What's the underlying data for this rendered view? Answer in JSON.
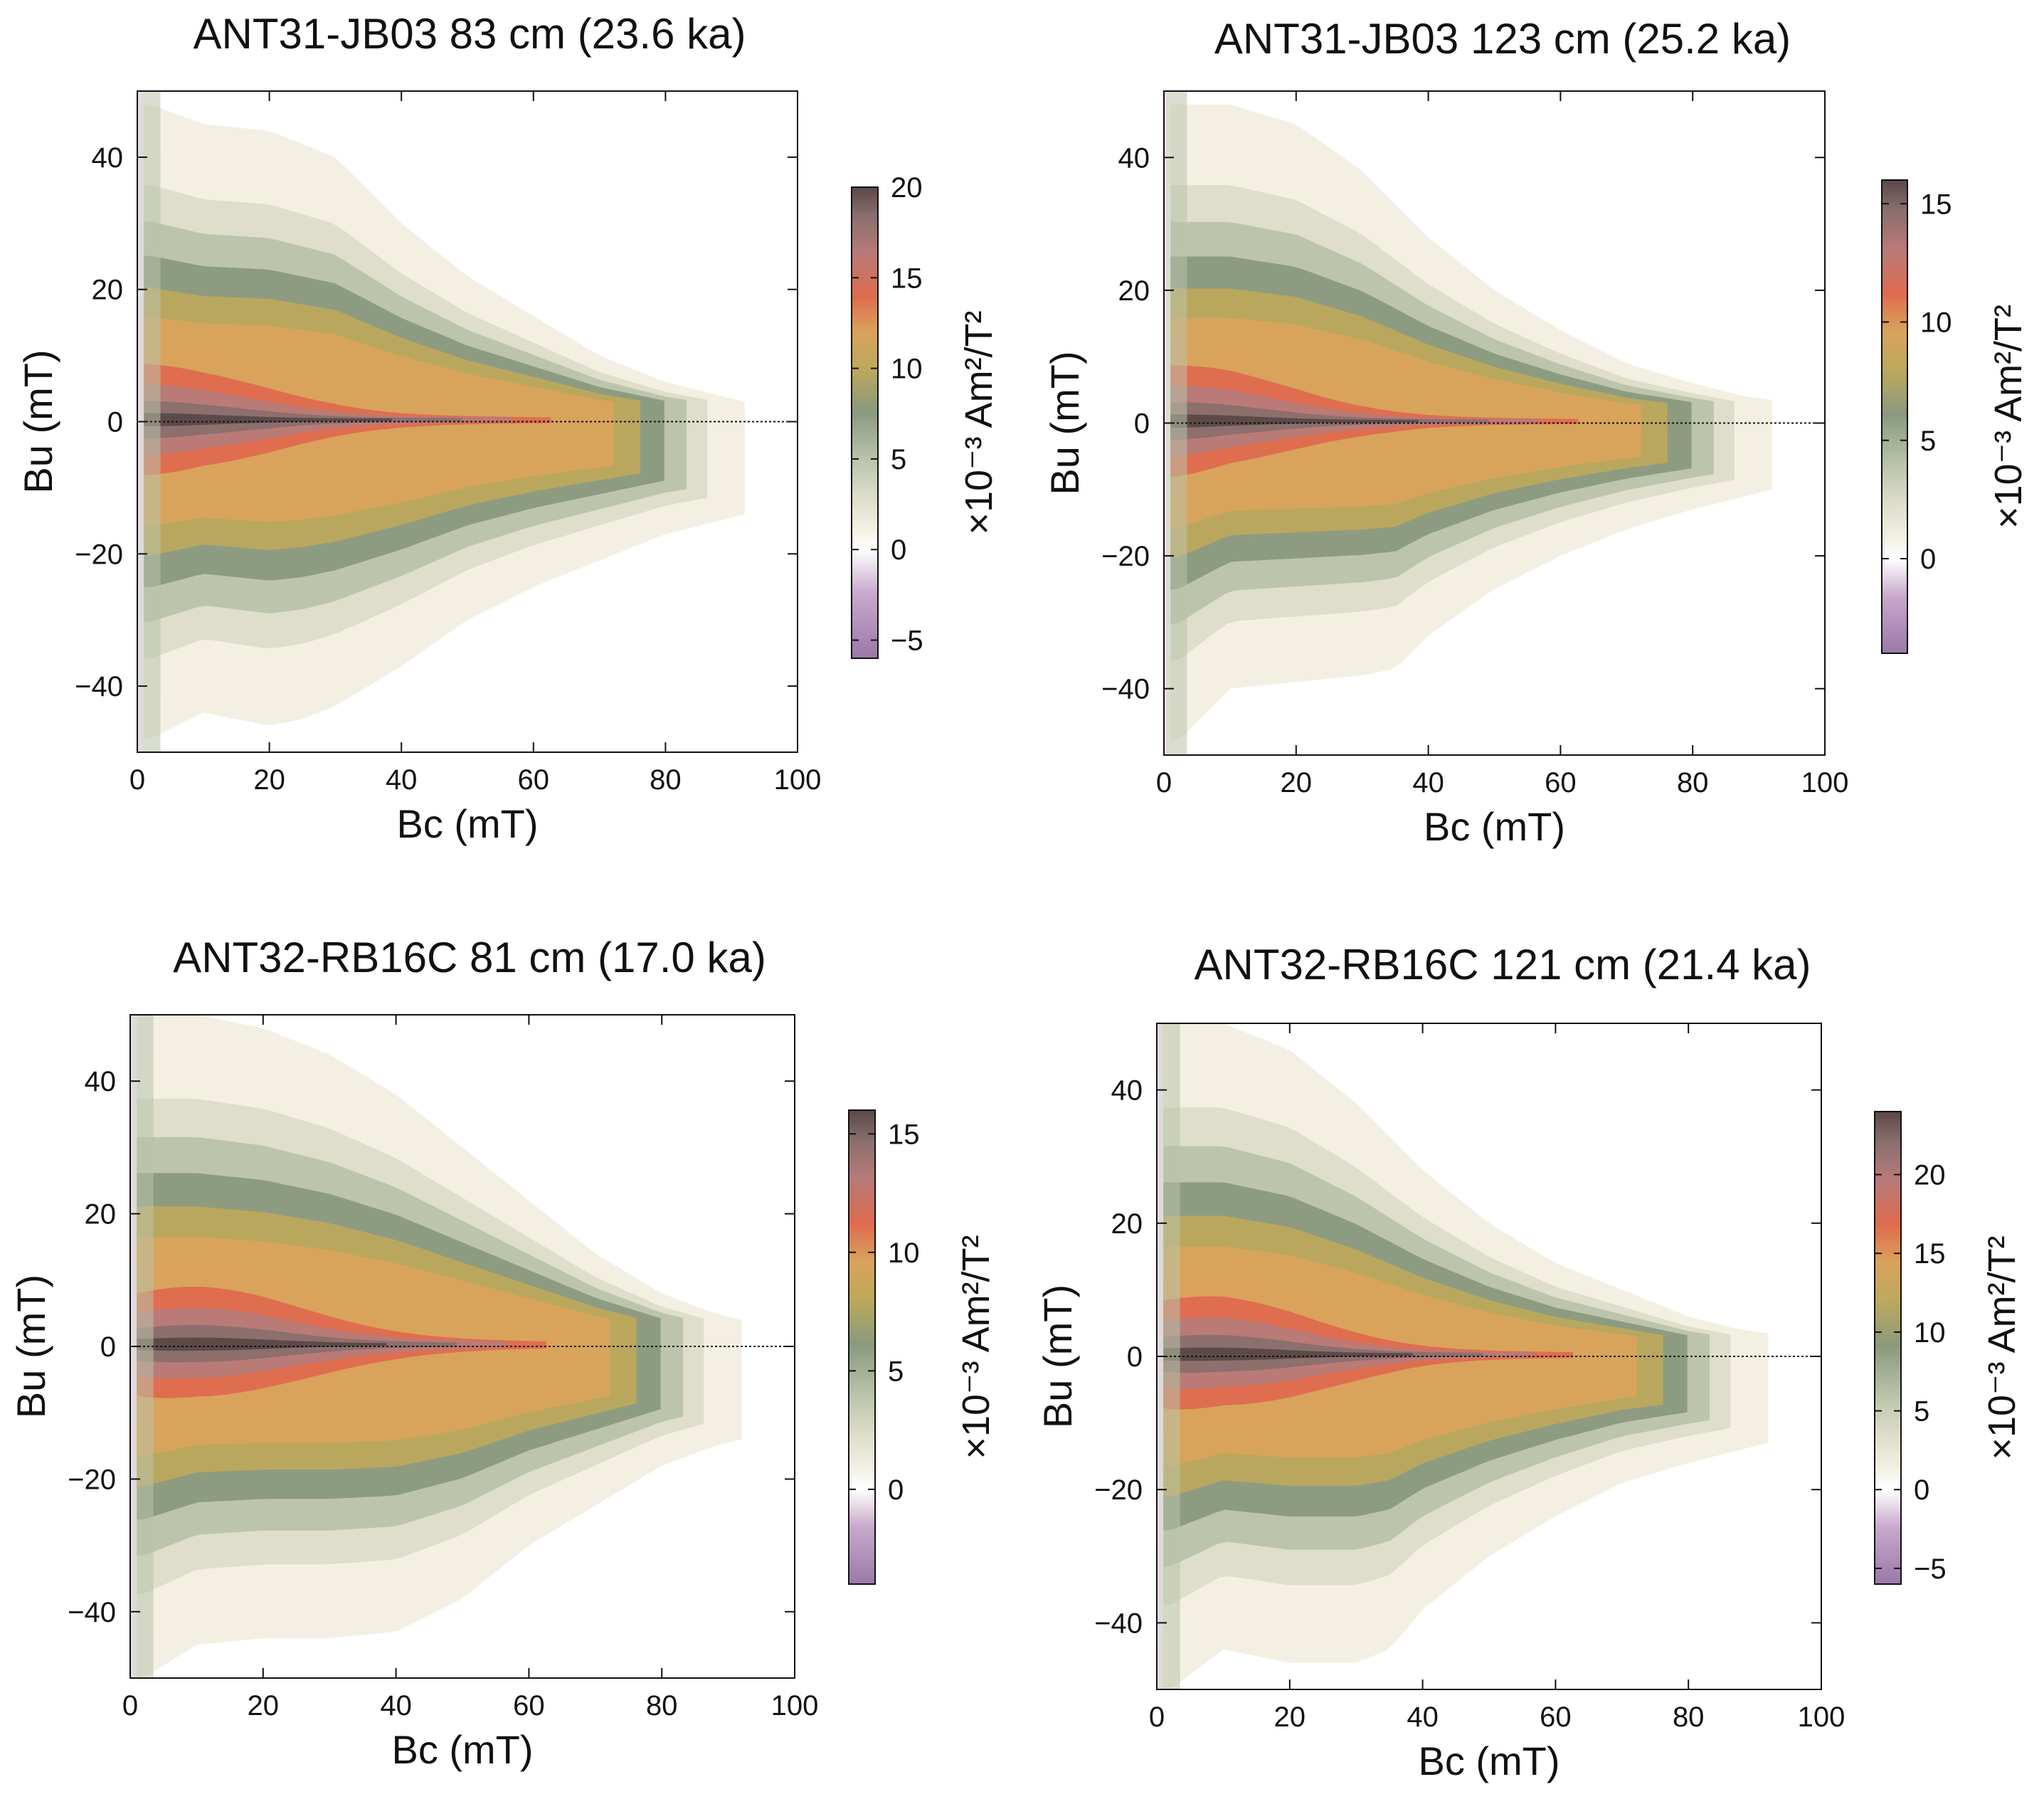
{
  "figure": {
    "colorbar_unit": "×10⁻³ Am²/T²",
    "colormap": [
      "#9a78a8",
      "#c8a9cc",
      "#ffffff",
      "#f2efe2",
      "#dcdcc8",
      "#b9c3aa",
      "#8a9a7e",
      "#bda85c",
      "#d9a35c",
      "#df6b4f",
      "#b77a78",
      "#8a6f6d",
      "#5a4848"
    ],
    "dashed_zero_line": true
  },
  "chart_data": [
    {
      "type": "heatmap",
      "title": "ANT31-JB03 83 cm (23.6 ka)",
      "xlabel": "Bc (mT)",
      "ylabel": "Bu (mT)",
      "xlim": [
        0,
        100
      ],
      "ylim": [
        -50,
        50
      ],
      "xticks": [
        "0",
        "20",
        "40",
        "60",
        "80",
        "100"
      ],
      "yticks": [
        "40",
        "20",
        "0",
        "−20",
        "−40"
      ],
      "ytick_values": [
        40,
        20,
        0,
        -20,
        -40
      ],
      "colorbar": {
        "min": -6,
        "max": 20,
        "ticks": [
          "20",
          "15",
          "10",
          "5",
          "0",
          "−5"
        ],
        "tick_values": [
          20,
          15,
          10,
          5,
          0,
          -5
        ]
      },
      "peak": {
        "bc": 2,
        "bu": 0.5,
        "value": 19
      },
      "data_extent_bc": 92,
      "upper_spread": [
        [
          2,
          48
        ],
        [
          10,
          45
        ],
        [
          20,
          44
        ],
        [
          30,
          40
        ],
        [
          40,
          30
        ],
        [
          50,
          22
        ],
        [
          60,
          16
        ],
        [
          70,
          10
        ],
        [
          80,
          6
        ],
        [
          88,
          4
        ],
        [
          92,
          3
        ]
      ],
      "lower_spread": [
        [
          2,
          -48
        ],
        [
          10,
          -44
        ],
        [
          20,
          -46
        ],
        [
          25,
          -45
        ],
        [
          30,
          -43
        ],
        [
          40,
          -37
        ],
        [
          50,
          -30
        ],
        [
          60,
          -25
        ],
        [
          70,
          -21
        ],
        [
          80,
          -17
        ],
        [
          88,
          -15
        ],
        [
          92,
          -14
        ]
      ]
    },
    {
      "type": "heatmap",
      "title": "ANT31-JB03 123 cm (25.2 ka)",
      "xlabel": "Bc (mT)",
      "ylabel": "Bu (mT)",
      "xlim": [
        0,
        100
      ],
      "ylim": [
        -50,
        50
      ],
      "xticks": [
        "0",
        "20",
        "40",
        "60",
        "80",
        "100"
      ],
      "yticks": [
        "40",
        "20",
        "0",
        "−20",
        "−40"
      ],
      "ytick_values": [
        40,
        20,
        0,
        -20,
        -40
      ],
      "colorbar": {
        "min": -4,
        "max": 16,
        "ticks": [
          "15",
          "10",
          "5",
          "0"
        ],
        "tick_values": [
          15,
          10,
          5,
          0
        ]
      },
      "peak": {
        "bc": 2,
        "bu": 0.5,
        "value": 15
      },
      "data_extent_bc": 92,
      "upper_spread": [
        [
          2,
          48
        ],
        [
          10,
          48
        ],
        [
          20,
          45
        ],
        [
          30,
          38
        ],
        [
          40,
          28
        ],
        [
          50,
          20
        ],
        [
          60,
          14
        ],
        [
          70,
          9
        ],
        [
          80,
          6
        ],
        [
          88,
          4
        ],
        [
          92,
          3.5
        ]
      ],
      "lower_spread": [
        [
          2,
          -48
        ],
        [
          10,
          -40
        ],
        [
          20,
          -39
        ],
        [
          30,
          -38
        ],
        [
          35,
          -37
        ],
        [
          40,
          -32
        ],
        [
          50,
          -25
        ],
        [
          60,
          -20
        ],
        [
          70,
          -16
        ],
        [
          80,
          -13
        ],
        [
          88,
          -11
        ],
        [
          92,
          -10
        ]
      ]
    },
    {
      "type": "heatmap",
      "title": "ANT32-RB16C 81 cm (17.0 ka)",
      "xlabel": "Bc (mT)",
      "ylabel": "Bu (mT)",
      "xlim": [
        0,
        100
      ],
      "ylim": [
        -50,
        50
      ],
      "xticks": [
        "0",
        "20",
        "40",
        "60",
        "80",
        "100"
      ],
      "yticks": [
        "40",
        "20",
        "0",
        "−20",
        "−40"
      ],
      "ytick_values": [
        40,
        20,
        0,
        -20,
        -40
      ],
      "colorbar": {
        "min": -4,
        "max": 16,
        "ticks": [
          "15",
          "10",
          "5",
          "0"
        ],
        "tick_values": [
          15,
          10,
          5,
          0
        ]
      },
      "peak": {
        "bc": 10,
        "bu": 0,
        "value": 16
      },
      "data_extent_bc": 92,
      "upper_spread": [
        [
          2,
          50
        ],
        [
          10,
          50
        ],
        [
          20,
          48
        ],
        [
          30,
          44
        ],
        [
          40,
          38
        ],
        [
          50,
          30
        ],
        [
          60,
          22
        ],
        [
          70,
          14
        ],
        [
          80,
          8
        ],
        [
          88,
          5
        ],
        [
          92,
          4
        ]
      ],
      "lower_spread": [
        [
          2,
          -50
        ],
        [
          10,
          -45
        ],
        [
          20,
          -44
        ],
        [
          30,
          -44
        ],
        [
          40,
          -43
        ],
        [
          50,
          -38
        ],
        [
          60,
          -30
        ],
        [
          70,
          -24
        ],
        [
          80,
          -18
        ],
        [
          88,
          -15
        ],
        [
          92,
          -14
        ]
      ]
    },
    {
      "type": "heatmap",
      "title": "ANT32-RB16C 121 cm (21.4 ka)",
      "xlabel": "Bc (mT)",
      "ylabel": "Bu (mT)",
      "xlim": [
        0,
        100
      ],
      "ylim": [
        -50,
        50
      ],
      "xticks": [
        "0",
        "20",
        "40",
        "60",
        "80",
        "100"
      ],
      "yticks": [
        "40",
        "20",
        "0",
        "−20",
        "−40"
      ],
      "ytick_values": [
        40,
        20,
        0,
        -20,
        -40
      ],
      "colorbar": {
        "min": -6,
        "max": 24,
        "ticks": [
          "20",
          "15",
          "10",
          "5",
          "0",
          "−5"
        ],
        "tick_values": [
          20,
          15,
          10,
          5,
          0,
          -5
        ]
      },
      "peak": {
        "bc": 8,
        "bu": 0,
        "value": 23
      },
      "data_extent_bc": 92,
      "upper_spread": [
        [
          2,
          50
        ],
        [
          10,
          50
        ],
        [
          20,
          46
        ],
        [
          30,
          38
        ],
        [
          40,
          28
        ],
        [
          50,
          20
        ],
        [
          60,
          14
        ],
        [
          70,
          10
        ],
        [
          80,
          6
        ],
        [
          88,
          4
        ],
        [
          92,
          3.5
        ]
      ],
      "lower_spread": [
        [
          2,
          -50
        ],
        [
          10,
          -44
        ],
        [
          20,
          -46
        ],
        [
          30,
          -46
        ],
        [
          35,
          -44
        ],
        [
          40,
          -38
        ],
        [
          50,
          -30
        ],
        [
          60,
          -24
        ],
        [
          70,
          -19
        ],
        [
          80,
          -16
        ],
        [
          88,
          -14
        ],
        [
          92,
          -13
        ]
      ]
    }
  ]
}
